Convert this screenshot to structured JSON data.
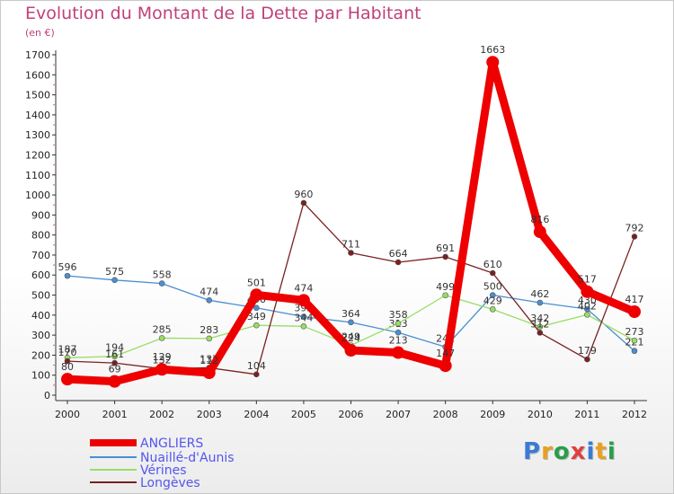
{
  "title": "Evolution du Montant de la Dette par Habitant",
  "subtitle": "(en €)",
  "logo_text": "Proxiti",
  "chart_data": {
    "type": "line",
    "categories": [
      "2000",
      "2001",
      "2002",
      "2003",
      "2004",
      "2005",
      "2006",
      "2007",
      "2008",
      "2009",
      "2010",
      "2011",
      "2012"
    ],
    "ylim": [
      0,
      1700
    ],
    "yticks": [
      0,
      100,
      200,
      300,
      400,
      500,
      600,
      700,
      800,
      900,
      1000,
      1100,
      1200,
      1300,
      1400,
      1500,
      1600,
      1700
    ],
    "grid": false,
    "legend_position": "bottom-left",
    "series": [
      {
        "name": "Nuaillé-d'Aunis",
        "color": "#4a8fd1",
        "values": [
          596,
          575,
          558,
          474,
          436,
          392,
          364,
          313,
          241,
          500,
          462,
          430,
          221
        ],
        "labels": [
          "596",
          "575",
          "558",
          "474",
          "436",
          "392",
          "364",
          "313",
          "241",
          "500",
          "462",
          "430",
          "221"
        ]
      },
      {
        "name": "Vérines",
        "color": "#99dd66",
        "values": [
          187,
          194,
          285,
          283,
          349,
          344,
          249,
          358,
          499,
          429,
          342,
          402,
          273
        ],
        "labels": [
          "187",
          "194",
          "285",
          "283",
          "349",
          "344",
          "249",
          "358",
          "499",
          "429",
          "342",
          "402",
          "273"
        ]
      },
      {
        "name": "Longèves",
        "color": "#7a2020",
        "values": [
          170,
          161,
          132,
          137,
          104,
          960,
          711,
          664,
          691,
          610,
          312,
          179,
          792
        ],
        "labels": [
          "170",
          "161",
          "132",
          "137",
          "104",
          "960",
          "711",
          "664",
          "691",
          "610",
          "312",
          "179",
          "792"
        ]
      },
      {
        "name": "ANGLIERS",
        "color": "#ee0000",
        "values": [
          80,
          69,
          129,
          112,
          501,
          474,
          224,
          213,
          147,
          1663,
          816,
          517,
          417
        ],
        "labels": [
          "80",
          "69",
          "129",
          "112",
          "501",
          "474",
          "224",
          "213",
          "147",
          "1663",
          "816",
          "517",
          "417"
        ]
      }
    ],
    "legend_order": [
      "ANGLIERS",
      "Nuaillé-d'Aunis",
      "Vérines",
      "Longèves"
    ],
    "legend_text_color": "#5555ee"
  }
}
